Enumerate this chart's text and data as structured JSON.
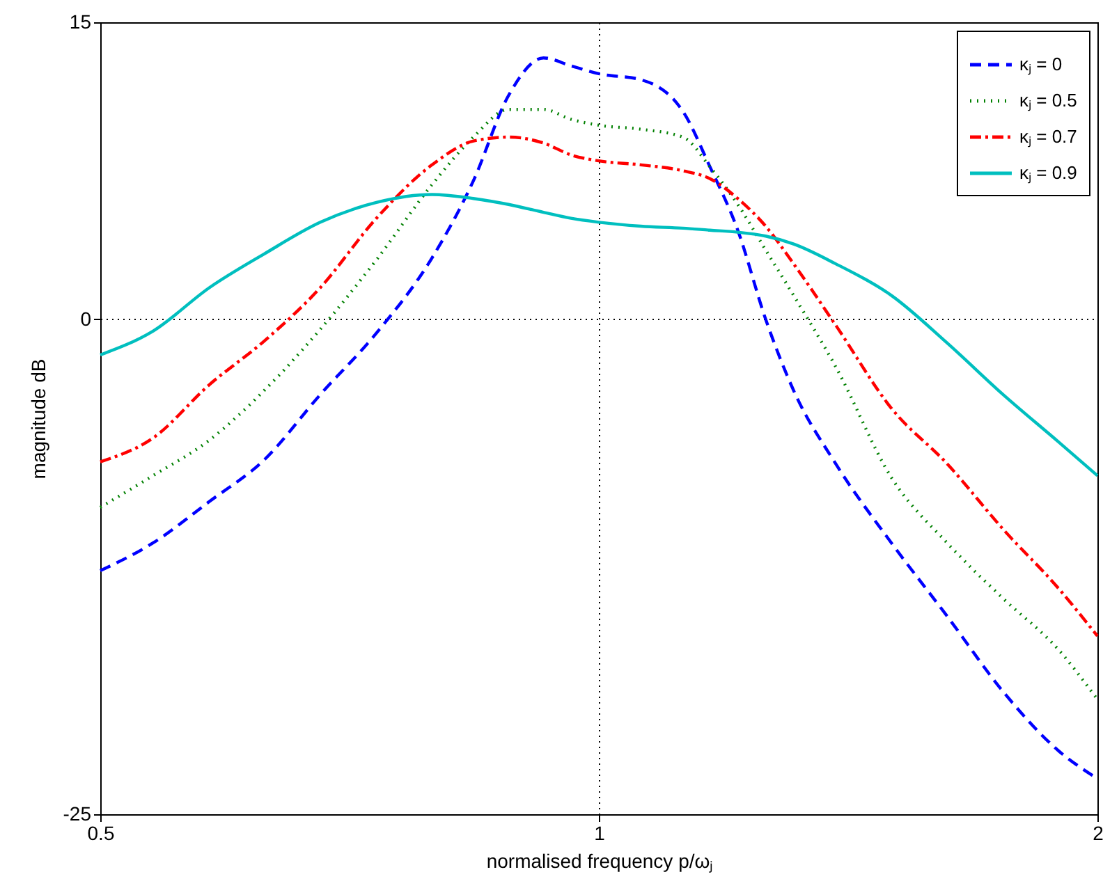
{
  "chart_data": {
    "type": "line",
    "xlabel": "normalised frequency   p/ωⱼ",
    "ylabel": "magnitude  dB",
    "log": "x",
    "xlim": [
      0.5,
      2
    ],
    "xticks": [
      0.5,
      1,
      2
    ],
    "ylim": [
      -25,
      15
    ],
    "yticks": [
      -25,
      0,
      15
    ],
    "grid": true,
    "legend": "top right",
    "marker": "none",
    "x": [
      0.5,
      0.538,
      0.582,
      0.628,
      0.679,
      0.734,
      0.793,
      0.84,
      0.882,
      0.926,
      0.962,
      1.0,
      1.06,
      1.124,
      1.167,
      1.213,
      1.261,
      1.311,
      1.39,
      1.502,
      1.623,
      1.754,
      1.895,
      2.0
    ],
    "series": [
      {
        "name": "κⱼ = 0",
        "color": "#0000ff",
        "line_style": "dashed",
        "values": [
          -12.7,
          -11.3,
          -9.2,
          -7.1,
          -3.8,
          -0.7,
          3.1,
          7.0,
          11.3,
          13.2,
          12.8,
          12.4,
          12.1,
          10.5,
          7.7,
          4.5,
          0,
          -3.6,
          -7.3,
          -11.3,
          -15.0,
          -18.8,
          -21.8,
          -23.2
        ]
      },
      {
        "name": "κⱼ = 0.5",
        "color": "#008000",
        "line_style": "dotted",
        "values": [
          -9.5,
          -7.9,
          -6.1,
          -3.6,
          -0.5,
          3.0,
          6.8,
          9.2,
          10.6,
          10.6,
          10.1,
          9.8,
          9.6,
          9.2,
          7.7,
          5.8,
          3.5,
          1.2,
          -2.4,
          -8.0,
          -11.3,
          -14.1,
          -16.7,
          -19.2
        ]
      },
      {
        "name": "κⱼ = 0.7",
        "color": "#ff0000",
        "line_style": "dashdot",
        "values": [
          -7.2,
          -6.0,
          -3.3,
          -1.1,
          1.6,
          5.1,
          7.8,
          9.0,
          9.2,
          8.9,
          8.3,
          8.0,
          7.8,
          7.5,
          7.1,
          6.1,
          4.7,
          2.8,
          -0.3,
          -4.5,
          -7.3,
          -10.6,
          -13.6,
          -16.0
        ]
      },
      {
        "name": "κⱼ = 0.9",
        "color": "#00bfbf",
        "line_style": "solid",
        "values": [
          -1.8,
          -0.6,
          1.6,
          3.3,
          4.9,
          5.9,
          6.3,
          6.1,
          5.8,
          5.4,
          5.1,
          4.9,
          4.7,
          4.6,
          4.5,
          4.4,
          4.2,
          3.8,
          2.8,
          1.2,
          -1.2,
          -3.8,
          -6.2,
          -7.9
        ]
      }
    ]
  }
}
